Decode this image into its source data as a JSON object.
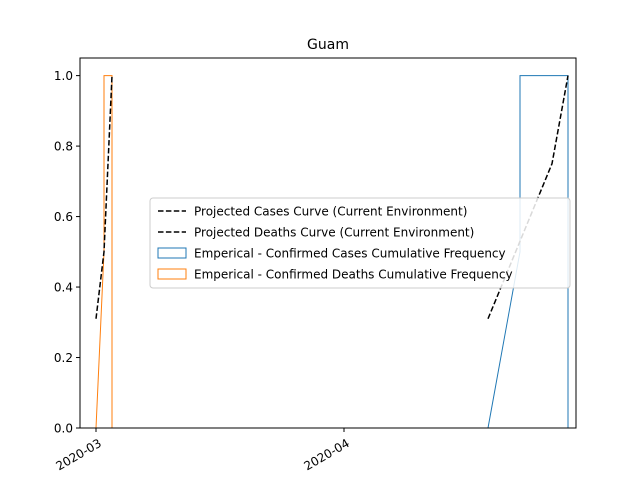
{
  "chart_data": {
    "type": "line",
    "title": "Guam",
    "xlabel": "",
    "ylabel": "",
    "x_axis": {
      "type": "date",
      "range": [
        "2020-02-28",
        "2020-04-30"
      ],
      "ticks": [
        "2020-03-01",
        "2020-04-01"
      ],
      "tick_labels": [
        "2020-03",
        "2020-04"
      ],
      "tick_label_rotation": 30
    },
    "y_axis": {
      "range": [
        0.0,
        1.05
      ],
      "ticks": [
        0.0,
        0.2,
        0.4,
        0.6,
        0.8,
        1.0
      ],
      "tick_labels": [
        "0.0",
        "0.2",
        "0.4",
        "0.6",
        "0.8",
        "1.0"
      ]
    },
    "grid": false,
    "legend": {
      "placement": "center-right",
      "entries": [
        "Projected Cases Curve (Current Environment)",
        "Projected Deaths Curve (Current Environment)",
        "Emperical - Confirmed Cases Cumulative Frequency",
        "Emperical - Confirmed Deaths Cumulative Frequency"
      ]
    },
    "series": [
      {
        "name": "Projected Cases Curve (Current Environment)",
        "kind": "line",
        "style": "dashed",
        "color": "#000000",
        "x": [
          "2020-04-19",
          "2020-04-27",
          "2020-04-29"
        ],
        "y": [
          0.31,
          0.75,
          1.0
        ]
      },
      {
        "name": "Projected Deaths Curve (Current Environment)",
        "kind": "line",
        "style": "dashed",
        "color": "#000000",
        "x": [
          "2020-03-01",
          "2020-03-02",
          "2020-03-03"
        ],
        "y": [
          0.31,
          0.5,
          1.0
        ]
      },
      {
        "name": "Emperical - Confirmed Cases Cumulative Frequency",
        "kind": "step",
        "color": "#1f77b4",
        "x": [
          "2020-04-19",
          "2020-04-23",
          "2020-04-23",
          "2020-04-29",
          "2020-04-29"
        ],
        "y": [
          0.0,
          0.5,
          1.0,
          1.0,
          0.0
        ]
      },
      {
        "name": "Emperical - Confirmed Deaths Cumulative Frequency",
        "kind": "step",
        "color": "#ff7f0e",
        "x": [
          "2020-03-01",
          "2020-03-02",
          "2020-03-02",
          "2020-03-03",
          "2020-03-03"
        ],
        "y": [
          0.0,
          0.5,
          1.0,
          1.0,
          0.0
        ]
      }
    ]
  }
}
